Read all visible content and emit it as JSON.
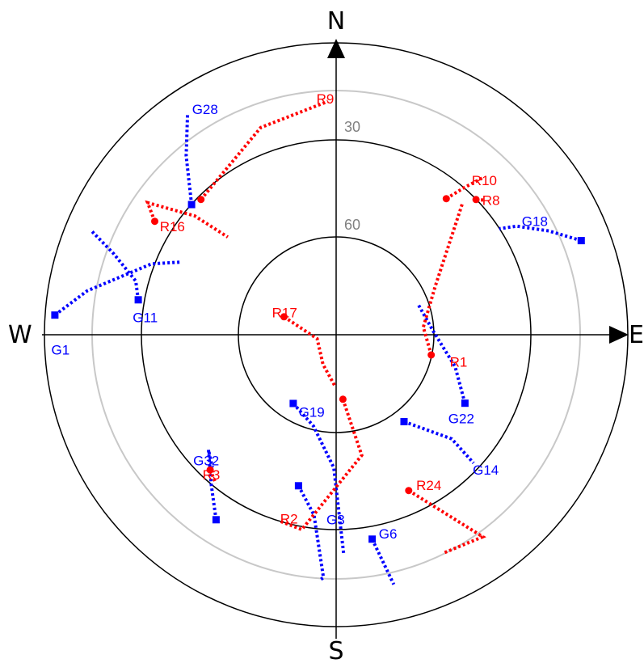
{
  "plot": {
    "compass": {
      "north": "N",
      "south": "S",
      "east": "E",
      "west": "W"
    },
    "elevation_rings": [
      {
        "label": "30",
        "elevation": 30
      },
      {
        "label": "60",
        "elevation": 60
      }
    ],
    "colors": {
      "axes": "#000000",
      "faint_ring": "#c8c8c8",
      "ring_label": "#808080",
      "gps": "#0000ff",
      "glonass": "#ff0000"
    }
  },
  "chart_data": {
    "type": "scatter",
    "coordinate_system": "polar sky plot (azimuth degrees clockwise from north, elevation degrees)",
    "groups": [
      {
        "prefix": "G",
        "color": "#0000ff",
        "marker": "square"
      },
      {
        "prefix": "R",
        "color": "#ff0000",
        "marker": "circle"
      }
    ],
    "satellites": [
      {
        "label": "G1",
        "color": "#0000ff",
        "track": [
          [
            274,
            3
          ],
          [
            280,
            12
          ],
          [
            291,
            29
          ],
          [
            295,
            37
          ]
        ],
        "label_at": [
          267,
          3
        ]
      },
      {
        "label": "G11",
        "color": "#0000ff",
        "track": [
          [
            280,
            28
          ],
          [
            285,
            26
          ],
          [
            290,
            17
          ],
          [
            293,
            8
          ]
        ],
        "label_at": [
          275,
          28
        ]
      },
      {
        "label": "G28",
        "color": "#0000ff",
        "track": [
          [
            312,
            30
          ],
          [
            320,
            18
          ],
          [
            326,
            8
          ]
        ],
        "label_at": [
          328,
          8
        ]
      },
      {
        "label": "G18",
        "color": "#0000ff",
        "track": [
          [
            69,
            9
          ],
          [
            64,
            17
          ],
          [
            59,
            25
          ],
          [
            57,
            30
          ]
        ],
        "label_at": [
          59,
          22
        ]
      },
      {
        "label": "G22",
        "color": "#0000ff",
        "track": [
          [
            118,
            45
          ],
          [
            105,
            52
          ],
          [
            88,
            60
          ],
          [
            70,
            63
          ]
        ],
        "label_at": [
          126,
          46
        ]
      },
      {
        "label": "G19",
        "color": "#0000ff",
        "track": [
          [
            212,
            65
          ],
          [
            194,
            61
          ],
          [
            181,
            49
          ],
          [
            178,
            22
          ]
        ],
        "label_at": [
          204,
          64
        ]
      },
      {
        "label": "G3",
        "color": "#0000ff",
        "track": [
          [
            194,
            42
          ],
          [
            187,
            34
          ],
          [
            183,
            15
          ],
          [
            184,
            14
          ]
        ],
        "label_at": [
          182,
          33
        ]
      },
      {
        "label": "G6",
        "color": "#0000ff",
        "track": [
          [
            170,
            26
          ],
          [
            167,
            11
          ]
        ],
        "label_at": [
          167,
          27
        ]
      },
      {
        "label": "G14",
        "color": "#0000ff",
        "track": [
          [
            142,
            56
          ],
          [
            132,
            42
          ],
          [
            133,
            32
          ]
        ],
        "label_at": [
          134,
          30
        ]
      },
      {
        "label": "G32",
        "color": "#0000ff",
        "track": [
          [
            213,
            22
          ],
          [
            220,
            30
          ],
          [
            228,
            37
          ],
          [
            223,
            34
          ]
        ],
        "label_at": [
          228,
          32
        ]
      },
      {
        "label": "R9",
        "color": "#ff0000",
        "track": [
          [
            315,
            31
          ],
          [
            340,
            22
          ],
          [
            358,
            18
          ]
        ],
        "label_at": [
          356,
          17
        ]
      },
      {
        "label": "R10",
        "color": "#ff0000",
        "track": [
          [
            39,
            36
          ],
          [
            41,
            30
          ],
          [
            43,
            24
          ]
        ],
        "label_at": [
          42,
          26
        ]
      },
      {
        "label": "R8",
        "color": "#ff0000",
        "track": [
          [
            46,
            30
          ],
          [
            48,
            28
          ]
        ],
        "label_at": [
          48,
          28
        ]
      },
      {
        "label": "R16",
        "color": "#ff0000",
        "track": [
          [
            302,
            24
          ],
          [
            305,
            19
          ],
          [
            310,
            33
          ],
          [
            312,
            45
          ]
        ],
        "label_at": [
          302,
          27
        ]
      },
      {
        "label": "R1",
        "color": "#ff0000",
        "track": [
          [
            102,
            60
          ],
          [
            85,
            63
          ],
          [
            64,
            56
          ],
          [
            44,
            34
          ]
        ],
        "label_at": [
          103,
          53
        ]
      },
      {
        "label": "R17",
        "color": "#ff0000",
        "track": [
          [
            289,
            73
          ],
          [
            258,
            84
          ],
          [
            204,
            80
          ],
          [
            181,
            74
          ]
        ],
        "label_at": [
          290,
          70
        ]
      },
      {
        "label": "R2",
        "color": "#ff0000",
        "track": [
          [
            174,
            70
          ],
          [
            168,
            52
          ],
          [
            190,
            29
          ],
          [
            197,
            30
          ]
        ],
        "label_at": [
          196,
          31
        ]
      },
      {
        "label": "R24",
        "color": "#ff0000",
        "track": [
          [
            155,
            37
          ],
          [
            144,
            13
          ],
          [
            154,
            15
          ]
        ],
        "label_at": [
          151,
          37
        ]
      },
      {
        "label": "R3",
        "color": "#ff0000",
        "track": [
          [
            223,
            33
          ],
          [
            219,
            31
          ]
        ],
        "label_at": [
          223,
          31
        ]
      }
    ]
  }
}
